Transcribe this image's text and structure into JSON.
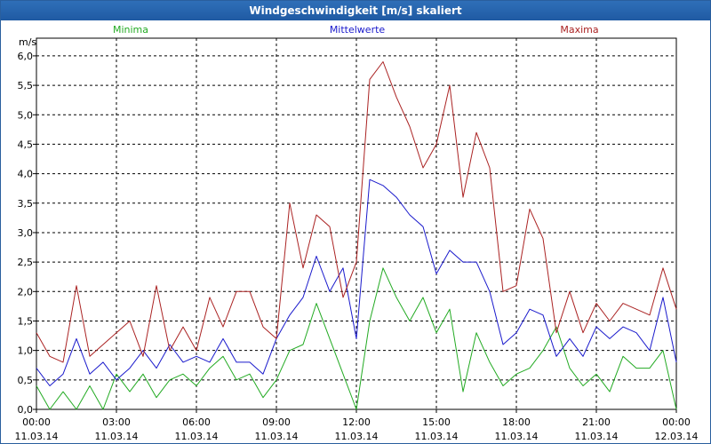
{
  "window": {
    "title": "Windgeschwindigkeit [m/s] skaliert"
  },
  "colors": {
    "minima": "#22aa22",
    "mittelwerte": "#1a1acc",
    "maxima": "#aa2222",
    "grid": "#000000",
    "title_bg": "#1f5aa3"
  },
  "chart_data": {
    "type": "line",
    "title": "Windgeschwindigkeit [m/s] skaliert",
    "ylabel": "m/s",
    "xlabel": "",
    "ylim": [
      0,
      6.3
    ],
    "yticks": [
      "0,0",
      "0,5",
      "1,0",
      "1,5",
      "2,0",
      "2,5",
      "3,0",
      "3,5",
      "4,0",
      "4,5",
      "5,0",
      "5,5",
      "6,0"
    ],
    "ytick_values": [
      0,
      0.5,
      1.0,
      1.5,
      2.0,
      2.5,
      3.0,
      3.5,
      4.0,
      4.5,
      5.0,
      5.5,
      6.0
    ],
    "xlim": [
      0,
      24
    ],
    "xticks": [
      {
        "time": "00:00",
        "date": "11.03.14"
      },
      {
        "time": "03:00",
        "date": "11.03.14"
      },
      {
        "time": "06:00",
        "date": "11.03.14"
      },
      {
        "time": "09:00",
        "date": "11.03.14"
      },
      {
        "time": "12:00",
        "date": "11.03.14"
      },
      {
        "time": "15:00",
        "date": "11.03.14"
      },
      {
        "time": "18:00",
        "date": "11.03.14"
      },
      {
        "time": "21:00",
        "date": "11.03.14"
      },
      {
        "time": "00:00",
        "date": "12.03.14"
      }
    ],
    "grid": true,
    "legend_position": "top",
    "series": [
      {
        "name": "Minima",
        "color": "#22aa22",
        "x": [
          0,
          0.5,
          1,
          1.5,
          2,
          2.5,
          3,
          3.5,
          4,
          4.5,
          5,
          5.5,
          6,
          6.5,
          7,
          7.5,
          8,
          8.5,
          9,
          9.5,
          10,
          10.5,
          11,
          11.5,
          12,
          12.5,
          13,
          13.5,
          14,
          14.5,
          15,
          15.5,
          16,
          16.5,
          17,
          17.5,
          18,
          18.5,
          19,
          19.5,
          20,
          20.5,
          21,
          21.5,
          22,
          22.5,
          23,
          23.5,
          24
        ],
        "values": [
          0.4,
          0.0,
          0.3,
          0.0,
          0.4,
          0.0,
          0.6,
          0.3,
          0.6,
          0.2,
          0.5,
          0.6,
          0.4,
          0.7,
          0.9,
          0.5,
          0.6,
          0.2,
          0.5,
          1.0,
          1.1,
          1.8,
          1.2,
          0.6,
          0.0,
          1.5,
          2.4,
          1.9,
          1.5,
          1.9,
          1.3,
          1.7,
          0.3,
          1.3,
          0.8,
          0.4,
          0.6,
          0.7,
          1.0,
          1.4,
          0.7,
          0.4,
          0.6,
          0.3,
          0.9,
          0.7,
          0.7,
          1.0,
          0.0
        ]
      },
      {
        "name": "Mittelwerte",
        "color": "#1a1acc",
        "x": [
          0,
          0.5,
          1,
          1.5,
          2,
          2.5,
          3,
          3.5,
          4,
          4.5,
          5,
          5.5,
          6,
          6.5,
          7,
          7.5,
          8,
          8.5,
          9,
          9.5,
          10,
          10.5,
          11,
          11.5,
          12,
          12.5,
          13,
          13.5,
          14,
          14.5,
          15,
          15.5,
          16,
          16.5,
          17,
          17.5,
          18,
          18.5,
          19,
          19.5,
          20,
          20.5,
          21,
          21.5,
          22,
          22.5,
          23,
          23.5,
          24
        ],
        "values": [
          0.7,
          0.4,
          0.6,
          1.2,
          0.6,
          0.8,
          0.5,
          0.7,
          1.0,
          0.7,
          1.1,
          0.8,
          0.9,
          0.8,
          1.2,
          0.8,
          0.8,
          0.6,
          1.2,
          1.6,
          1.9,
          2.6,
          2.0,
          2.4,
          1.2,
          3.9,
          3.8,
          3.6,
          3.3,
          3.1,
          2.3,
          2.7,
          2.5,
          2.5,
          2.0,
          1.1,
          1.3,
          1.7,
          1.6,
          0.9,
          1.2,
          0.9,
          1.4,
          1.2,
          1.4,
          1.3,
          1.0,
          1.9,
          0.8
        ]
      },
      {
        "name": "Maxima",
        "color": "#aa2222",
        "x": [
          0,
          0.5,
          1,
          1.5,
          2,
          2.5,
          3,
          3.5,
          4,
          4.5,
          5,
          5.5,
          6,
          6.5,
          7,
          7.5,
          8,
          8.5,
          9,
          9.5,
          10,
          10.5,
          11,
          11.5,
          12,
          12.5,
          13,
          13.5,
          14,
          14.5,
          15,
          15.5,
          16,
          16.5,
          17,
          17.5,
          18,
          18.5,
          19,
          19.5,
          20,
          20.5,
          21,
          21.5,
          22,
          22.5,
          23,
          23.5,
          24
        ],
        "values": [
          1.3,
          0.9,
          0.8,
          2.1,
          0.9,
          1.1,
          1.3,
          1.5,
          0.9,
          2.1,
          1.0,
          1.4,
          1.0,
          1.9,
          1.4,
          2.0,
          2.0,
          1.4,
          1.2,
          3.5,
          2.4,
          3.3,
          3.1,
          1.9,
          2.5,
          5.6,
          5.9,
          5.3,
          4.8,
          4.1,
          4.5,
          5.5,
          3.6,
          4.7,
          4.1,
          2.0,
          2.1,
          3.4,
          2.9,
          1.3,
          2.0,
          1.3,
          1.8,
          1.5,
          1.8,
          1.7,
          1.6,
          2.4,
          1.7
        ]
      }
    ]
  }
}
